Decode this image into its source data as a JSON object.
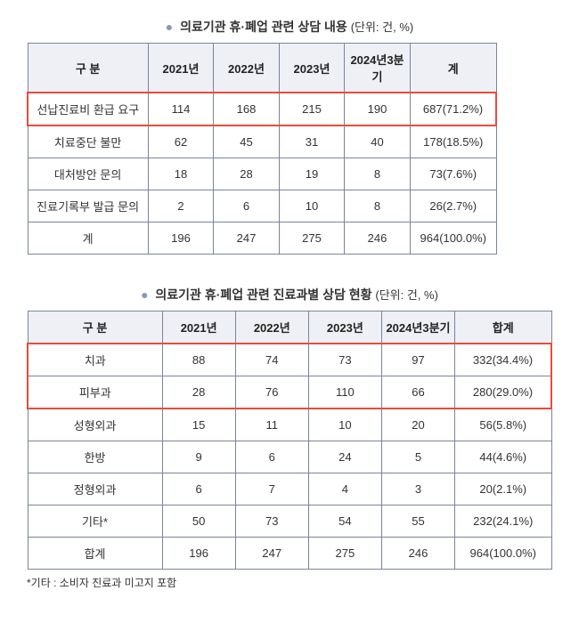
{
  "table1": {
    "titleMain": "의료기관 휴·폐업 관련 상담 내용",
    "titleUnit": "(단위: 건, %)",
    "columns": [
      "구 분",
      "2021년",
      "2022년",
      "2023년",
      "2024년3분기",
      "계"
    ],
    "rows": [
      {
        "label": "선납진료비 환급 요구",
        "y1": "114",
        "y2": "168",
        "y3": "215",
        "y4": "190",
        "total": "687(71.2%)",
        "highlight": true
      },
      {
        "label": "치료중단 불만",
        "y1": "62",
        "y2": "45",
        "y3": "31",
        "y4": "40",
        "total": "178(18.5%)"
      },
      {
        "label": "대처방안 문의",
        "y1": "18",
        "y2": "28",
        "y3": "19",
        "y4": "8",
        "total": "73(7.6%)"
      },
      {
        "label": "진료기록부 발급 문의",
        "y1": "2",
        "y2": "6",
        "y3": "10",
        "y4": "8",
        "total": "26(2.7%)"
      },
      {
        "label": "계",
        "y1": "196",
        "y2": "247",
        "y3": "275",
        "y4": "246",
        "total": "964(100.0%)"
      }
    ],
    "highlightColor": "#e74c3c",
    "headerBg": "#eef0f5",
    "borderColor": "#7a8599"
  },
  "table2": {
    "titleMain": "의료기관 휴·폐업 관련 진료과별 상담 현황",
    "titleUnit": "(단위: 건, %)",
    "columns": [
      "구 분",
      "2021년",
      "2022년",
      "2023년",
      "2024년3분기",
      "합계"
    ],
    "rows": [
      {
        "label": "치과",
        "y1": "88",
        "y2": "74",
        "y3": "73",
        "y4": "97",
        "total": "332(34.4%)",
        "highlight": true
      },
      {
        "label": "피부과",
        "y1": "28",
        "y2": "76",
        "y3": "110",
        "y4": "66",
        "total": "280(29.0%)",
        "highlight": true
      },
      {
        "label": "성형외과",
        "y1": "15",
        "y2": "11",
        "y3": "10",
        "y4": "20",
        "total": "56(5.8%)"
      },
      {
        "label": "한방",
        "y1": "9",
        "y2": "6",
        "y3": "24",
        "y4": "5",
        "total": "44(4.6%)"
      },
      {
        "label": "정형외과",
        "y1": "6",
        "y2": "7",
        "y3": "4",
        "y4": "3",
        "total": "20(2.1%)"
      },
      {
        "label": "기타*",
        "y1": "50",
        "y2": "73",
        "y3": "54",
        "y4": "55",
        "total": "232(24.1%)"
      },
      {
        "label": "합계",
        "y1": "196",
        "y2": "247",
        "y3": "275",
        "y4": "246",
        "total": "964(100.0%)"
      }
    ],
    "footnote": "*기타 : 소비자 진료과 미고지 포함",
    "highlightColor": "#e74c3c",
    "headerBg": "#eef0f5",
    "borderColor": "#7a8599"
  }
}
